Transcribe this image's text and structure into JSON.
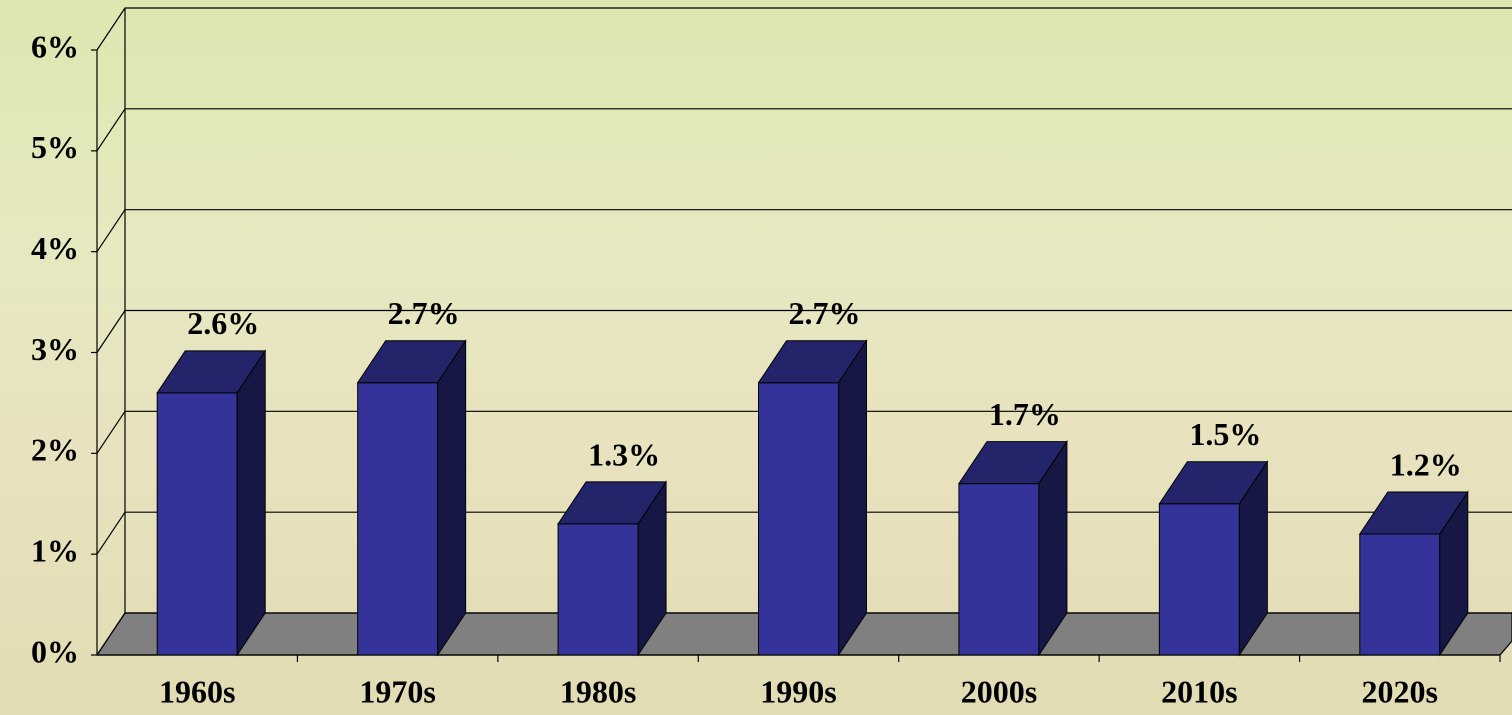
{
  "chart_data": {
    "type": "bar3d",
    "categories": [
      "1960s",
      "1970s",
      "1980s",
      "1990s",
      "2000s",
      "2010s",
      "2020s"
    ],
    "values": [
      2.6,
      2.7,
      1.3,
      2.7,
      1.7,
      1.5,
      1.2
    ],
    "value_labels": [
      "2.6%",
      "2.7%",
      "1.3%",
      "2.7%",
      "1.7%",
      "1.5%",
      "1.2%"
    ],
    "color": "#333399",
    "ylim": [
      0,
      6
    ],
    "yticks": [
      {
        "value": 0,
        "label": "0%"
      },
      {
        "value": 1,
        "label": "1%"
      },
      {
        "value": 2,
        "label": "2%"
      },
      {
        "value": 3,
        "label": "3%"
      },
      {
        "value": 4,
        "label": "4%"
      },
      {
        "value": 5,
        "label": "5%"
      },
      {
        "value": 6,
        "label": "6%"
      }
    ],
    "grid": true
  }
}
